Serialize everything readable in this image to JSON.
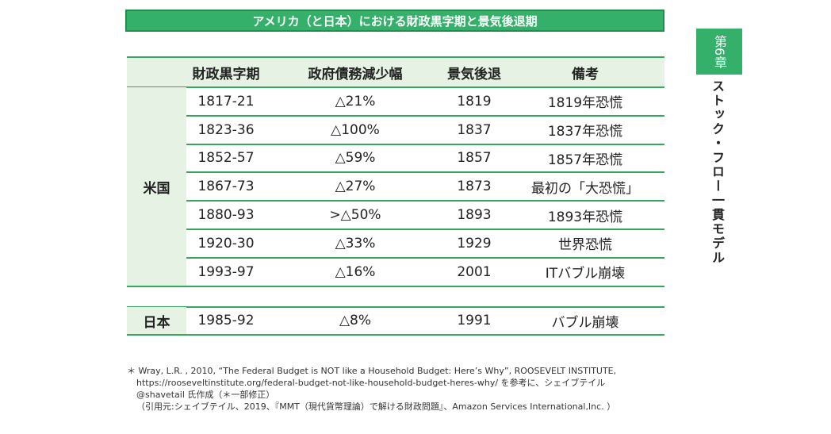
{
  "header": {
    "title": "アメリカ（と日本）における財政黒字期と景気後退期"
  },
  "table": {
    "columns": [
      "財政黒字期",
      "政府債務減少幅",
      "景気後退",
      "備考"
    ],
    "groups": [
      {
        "label": "米国",
        "rows": [
          [
            "1817-21",
            "△21%",
            "1819",
            "1819年恐慌"
          ],
          [
            "1823-36",
            "△100%",
            "1837",
            "1837年恐慌"
          ],
          [
            "1852-57",
            "△59%",
            "1857",
            "1857年恐慌"
          ],
          [
            "1867-73",
            "△27%",
            "1873",
            "最初の「大恐慌」"
          ],
          [
            "1880-93",
            ">△50%",
            "1893",
            "1893年恐慌"
          ],
          [
            "1920-30",
            "△33%",
            "1929",
            "世界恐慌"
          ],
          [
            "1993-97",
            "△16%",
            "2001",
            "ITバブル崩壊"
          ]
        ]
      },
      {
        "label": "日本",
        "rows": [
          [
            "1985-92",
            "△8%",
            "1991",
            "バブル崩壊"
          ]
        ]
      }
    ]
  },
  "footnote": [
    "＊ Wray, L.R. , 2010, “The Federal Budget is NOT like a Household Budget: Here’s Why”, ROOSEVELT INSTITUTE,",
    "https://rooseveltinstitute.org/federal-budget-not-like-household-budget-heres-why/ を参考に、シェイブテイル",
    "@shavetail 氏作成（＊一部修正）",
    "（引用元:シェイブテイル、2019、『MMT（現代貨幣理論）で解ける財政問題』、Amazon Services International,Inc. ）"
  ],
  "sidebar": {
    "chapter": "第6章",
    "title": "ストック・フロー一貫モデル"
  }
}
